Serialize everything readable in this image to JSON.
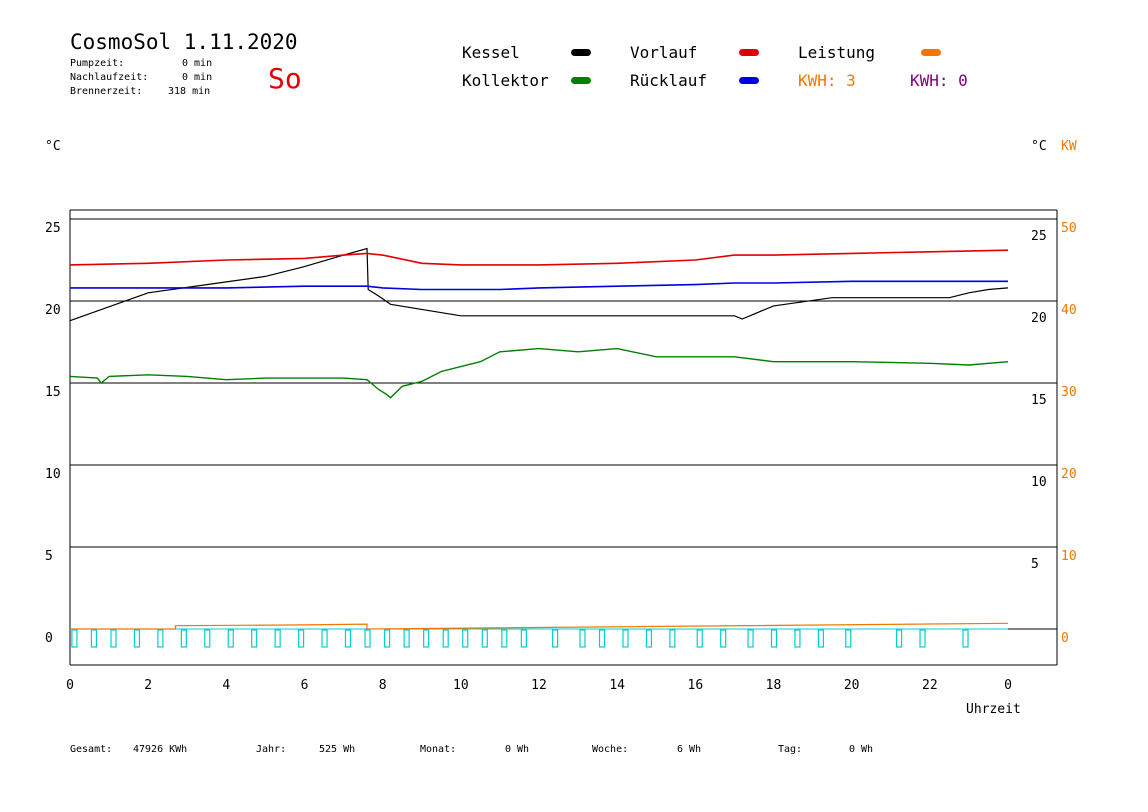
{
  "header": {
    "title": "CosmoSol 1.11.2020",
    "weekday": "So",
    "pumpzeit_label": "Pumpzeit:",
    "pumpzeit_value": "0 min",
    "nachlauf_label": "Nachlaufzeit:",
    "nachlauf_value": "0 min",
    "brenner_label": "Brennerzeit:",
    "brenner_value": "318 min"
  },
  "legend": {
    "kessel": "Kessel",
    "kollektor": "Kollektor",
    "vorlauf": "Vorlauf",
    "ruecklauf": "Rücklauf",
    "leistung": "Leistung",
    "kwh1": "KWH: 3",
    "kwh2": "KWH: 0"
  },
  "colors": {
    "kessel": "#000000",
    "kollektor": "#008000",
    "vorlauf": "#e00000",
    "ruecklauf": "#0000e0",
    "leistung": "#f07800",
    "kwh2": "#800080",
    "pump": "#00d0d0"
  },
  "axes": {
    "left_unit": "°C",
    "right_unit": "°C",
    "right_unit2": "KW",
    "xlabel": "Uhrzeit"
  },
  "footer": {
    "gesamt_label": "Gesamt:",
    "gesamt_value": "47926 KWh",
    "jahr_label": "Jahr:",
    "jahr_value": "525 Wh",
    "monat_label": "Monat:",
    "monat_value": "0 Wh",
    "woche_label": "Woche:",
    "woche_value": "6 Wh",
    "tag_label": "Tag:",
    "tag_value": "0 Wh"
  },
  "chart_data": {
    "type": "line",
    "xlim": [
      0,
      24
    ],
    "ylim": [
      -2,
      27
    ],
    "x_ticks": [
      "0",
      "2",
      "4",
      "6",
      "8",
      "10",
      "12",
      "14",
      "16",
      "18",
      "20",
      "22",
      "0"
    ],
    "y_left_ticks": [
      "0",
      "5",
      "10",
      "15",
      "20",
      "25"
    ],
    "y_right_ticks": [
      "5",
      "10",
      "15",
      "20",
      "25"
    ],
    "y_kw_ticks": [
      "0",
      "10",
      "20",
      "30",
      "40",
      "50"
    ],
    "series": [
      {
        "name": "Kessel",
        "x": [
          0,
          2,
          3.5,
          5,
          6,
          7,
          7.6,
          7.63,
          7.9,
          8.2,
          10,
          15,
          17,
          17.2,
          18,
          19.5,
          20.3,
          21,
          22.5,
          23,
          23.5,
          24
        ],
        "y": [
          18.8,
          20.5,
          21,
          21.5,
          22.1,
          22.8,
          23.2,
          20.7,
          20.3,
          19.8,
          19.1,
          19.1,
          19.1,
          18.9,
          19.7,
          20.2,
          20.2,
          20.2,
          20.2,
          20.5,
          20.7,
          20.8
        ]
      },
      {
        "name": "Vorlauf",
        "x": [
          0,
          2,
          4,
          6,
          7,
          7.6,
          8,
          9,
          10,
          12,
          14,
          16,
          17,
          18,
          20,
          22,
          24
        ],
        "y": [
          22.2,
          22.3,
          22.5,
          22.6,
          22.8,
          22.9,
          22.8,
          22.3,
          22.2,
          22.2,
          22.3,
          22.5,
          22.8,
          22.8,
          22.9,
          23.0,
          23.1
        ]
      },
      {
        "name": "Rücklauf",
        "x": [
          0,
          2,
          4,
          6,
          7.6,
          8,
          9,
          10,
          11,
          12,
          14,
          16,
          17,
          18,
          20,
          22,
          24
        ],
        "y": [
          20.8,
          20.8,
          20.8,
          20.9,
          20.9,
          20.8,
          20.7,
          20.7,
          20.7,
          20.8,
          20.9,
          21.0,
          21.1,
          21.1,
          21.2,
          21.2,
          21.2
        ]
      },
      {
        "name": "Kollektor",
        "x": [
          0,
          0.7,
          0.8,
          1,
          2,
          3,
          4,
          5,
          6,
          7,
          7.6,
          7.9,
          8.1,
          8.2,
          8.5,
          9,
          9.5,
          10,
          10.5,
          11,
          12,
          13,
          14,
          15,
          16,
          17,
          18,
          20,
          22,
          23,
          24
        ],
        "y": [
          15.4,
          15.3,
          15,
          15.4,
          15.5,
          15.4,
          15.2,
          15.3,
          15.3,
          15.3,
          15.2,
          14.6,
          14.3,
          14.1,
          14.8,
          15.1,
          15.7,
          16,
          16.3,
          16.9,
          17.1,
          16.9,
          17.1,
          16.6,
          16.6,
          16.6,
          16.3,
          16.3,
          16.2,
          16.1,
          16.3
        ]
      }
    ],
    "leistung_kw": {
      "x": [
        0,
        2.7,
        2.7,
        6,
        7.6,
        7.6,
        24
      ],
      "y": [
        0,
        0,
        0.4,
        0.5,
        0.6,
        0,
        0.7
      ]
    },
    "pump_pulses_h": [
      0.1,
      0.6,
      1.1,
      1.7,
      2.3,
      2.9,
      3.5,
      4.1,
      4.7,
      5.3,
      5.9,
      6.5,
      7.1,
      7.6,
      8.1,
      8.6,
      9.1,
      9.6,
      10.1,
      10.6,
      11.1,
      11.6,
      12.4,
      13.1,
      13.6,
      14.2,
      14.8,
      15.4,
      16.1,
      16.7,
      17.4,
      18.0,
      18.6,
      19.2,
      19.9,
      21.2,
      21.8,
      22.9
    ]
  }
}
